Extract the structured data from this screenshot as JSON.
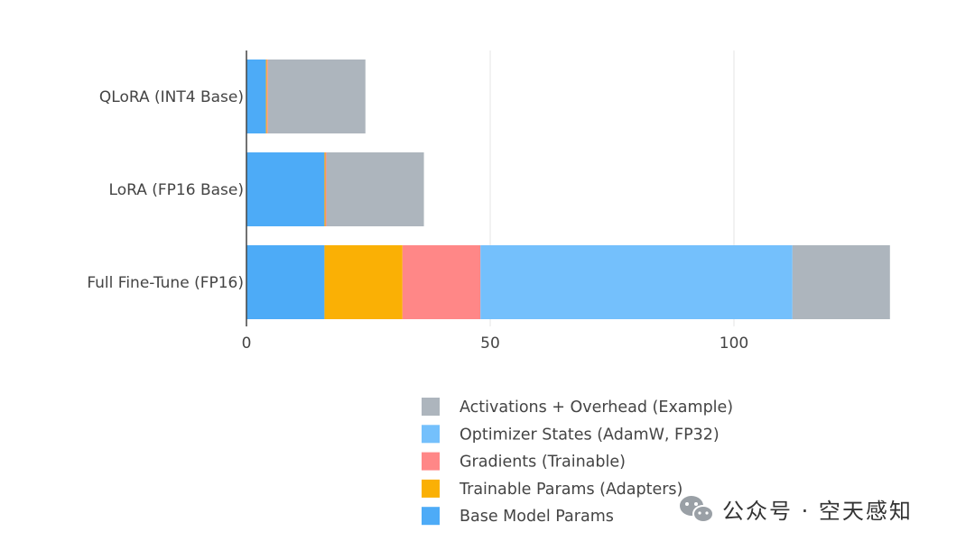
{
  "chart_data": {
    "type": "bar",
    "orientation": "horizontal",
    "stacked": true,
    "categories": [
      "QLoRA (INT4 Base)",
      "LoRA (FP16 Base)",
      "Full Fine-Tune (FP16)"
    ],
    "series": [
      {
        "name": "Base Model Params",
        "color": "#4dabf7",
        "values": [
          4,
          16,
          16
        ]
      },
      {
        "name": "Trainable Params (Adapters)",
        "color": "#fab005",
        "values": [
          0.2,
          0.2,
          16
        ]
      },
      {
        "name": "Gradients (Trainable)",
        "color": "#ff8787",
        "values": [
          0.2,
          0.2,
          16
        ]
      },
      {
        "name": "Optimizer States (AdamW, FP32)",
        "color": "#74c0fc",
        "values": [
          0,
          0,
          64
        ]
      },
      {
        "name": "Activations + Overhead (Example)",
        "color": "#adb5bd",
        "values": [
          20,
          20,
          20
        ]
      }
    ],
    "xlim": [
      0,
      132
    ],
    "xticks": [
      0,
      50,
      100
    ],
    "grid": true,
    "legend_position": "bottom-right"
  },
  "watermark": {
    "icon": "wechat-icon",
    "text": "公众号 · 空天感知"
  }
}
